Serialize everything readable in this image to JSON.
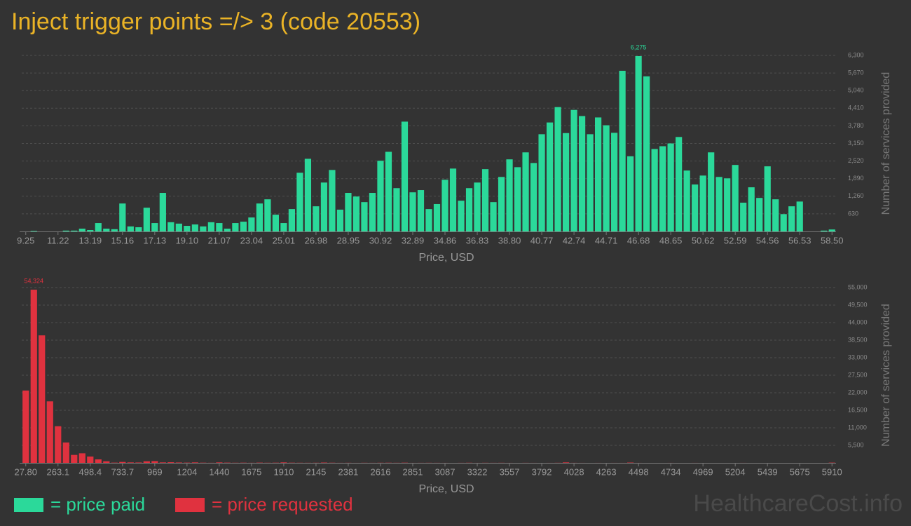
{
  "title": "Inject trigger points =/> 3 (code 20553)",
  "watermark": "HealthcareCost.info",
  "chart_data": [
    {
      "type": "bar",
      "x_label": "Price, USD",
      "y_label": "Number of services provided",
      "categories": [
        "9.25",
        null,
        null,
        null,
        "11.22",
        null,
        null,
        null,
        "13.19",
        null,
        null,
        null,
        "15.16",
        null,
        null,
        null,
        "17.13",
        null,
        null,
        null,
        "19.10",
        null,
        null,
        null,
        "21.07",
        null,
        null,
        null,
        "23.04",
        null,
        null,
        null,
        "25.01",
        null,
        null,
        null,
        "26.98",
        null,
        null,
        null,
        "28.95",
        null,
        null,
        null,
        "30.92",
        null,
        null,
        null,
        "32.89",
        null,
        null,
        null,
        "34.86",
        null,
        null,
        null,
        "36.83",
        null,
        null,
        null,
        "38.80",
        null,
        null,
        null,
        "40.77",
        null,
        null,
        null,
        "42.74",
        null,
        null,
        null,
        "44.71",
        null,
        null,
        null,
        "46.68",
        null,
        null,
        null,
        "48.65",
        null,
        null,
        null,
        "50.62",
        null,
        null,
        null,
        "52.59",
        null,
        null,
        null,
        "54.56",
        null,
        null,
        null,
        "56.53",
        null,
        null,
        null,
        "58.50"
      ],
      "series": [
        {
          "name": "= price paid",
          "color": "#2bd99a",
          "values": [
            0,
            20,
            0,
            0,
            0,
            30,
            30,
            100,
            50,
            300,
            100,
            80,
            1000,
            180,
            150,
            850,
            300,
            1380,
            330,
            280,
            200,
            250,
            180,
            330,
            300,
            100,
            300,
            350,
            500,
            1000,
            1150,
            600,
            300,
            800,
            2100,
            2600,
            900,
            1750,
            2200,
            780,
            1380,
            1250,
            1050,
            1380,
            2530,
            2850,
            1550,
            3930,
            1400,
            1480,
            800,
            980,
            1850,
            2250,
            1100,
            1550,
            1750,
            2230,
            1050,
            1950,
            2580,
            2300,
            2830,
            2450,
            3480,
            3900,
            4450,
            3520,
            4350,
            4130,
            3480,
            4080,
            3800,
            3530,
            5750,
            2690,
            6275,
            5550,
            2950,
            3050,
            3150,
            3380,
            2180,
            1680,
            2000,
            2830,
            1950,
            1900,
            2380,
            1030,
            1580,
            1200,
            2330,
            1150,
            620,
            900,
            1070,
            0,
            0,
            30,
            70
          ],
          "value_labels": [
            null,
            null,
            null,
            null,
            null,
            null,
            null,
            null,
            null,
            null,
            null,
            null,
            null,
            null,
            null,
            null,
            null,
            null,
            null,
            null,
            null,
            null,
            null,
            null,
            null,
            null,
            null,
            null,
            null,
            null,
            null,
            null,
            null,
            null,
            null,
            null,
            null,
            null,
            null,
            null,
            null,
            null,
            null,
            null,
            null,
            null,
            null,
            null,
            null,
            null,
            null,
            null,
            null,
            null,
            null,
            null,
            null,
            null,
            null,
            null,
            null,
            null,
            null,
            null,
            null,
            null,
            null,
            null,
            null,
            null,
            null,
            null,
            null,
            null,
            null,
            null,
            "6,275",
            null,
            null,
            null,
            null,
            null,
            null,
            null,
            null,
            null,
            null,
            null,
            null,
            null,
            null,
            null,
            null,
            null,
            null,
            null,
            null,
            null,
            null,
            null,
            null
          ]
        }
      ],
      "ylim": [
        0,
        6300
      ],
      "yticks": [
        630,
        {
          "value": 1260,
          "label": "1,260"
        },
        {
          "value": 1890,
          "label": "1,890"
        },
        {
          "value": 2520,
          "label": "2,520"
        },
        {
          "value": 3150,
          "label": "3,150"
        },
        {
          "value": 3780,
          "label": "3,780"
        },
        {
          "value": 4410,
          "label": "4,410"
        },
        {
          "value": 5040,
          "label": "5,040"
        },
        {
          "value": 5670,
          "label": "5,670"
        },
        {
          "value": 6300,
          "label": "6,300"
        }
      ],
      "grid": true
    },
    {
      "type": "bar",
      "x_label": "Price, USD",
      "y_label": "Number of services provided",
      "categories": [
        "27.80",
        null,
        null,
        null,
        "263.1",
        null,
        null,
        null,
        "498.4",
        null,
        null,
        null,
        "733.7",
        null,
        null,
        null,
        "969",
        null,
        null,
        null,
        "1204",
        null,
        null,
        null,
        "1440",
        null,
        null,
        null,
        "1675",
        null,
        null,
        null,
        "1910",
        null,
        null,
        null,
        "2145",
        null,
        null,
        null,
        "2381",
        null,
        null,
        null,
        "2616",
        null,
        null,
        null,
        "2851",
        null,
        null,
        null,
        "3087",
        null,
        null,
        null,
        "3322",
        null,
        null,
        null,
        "3557",
        null,
        null,
        null,
        "3792",
        null,
        null,
        null,
        "4028",
        null,
        null,
        null,
        "4263",
        null,
        null,
        null,
        "4498",
        null,
        null,
        null,
        "4734",
        null,
        null,
        null,
        "4969",
        null,
        null,
        null,
        "5204",
        null,
        null,
        null,
        "5439",
        null,
        null,
        null,
        "5675",
        null,
        null,
        null,
        "5910"
      ],
      "series": [
        {
          "name": "= price requested",
          "color": "#e0323f",
          "values": [
            22700,
            54324,
            40000,
            19300,
            11500,
            6400,
            2500,
            3000,
            2000,
            1100,
            500,
            80,
            300,
            150,
            120,
            500,
            550,
            150,
            200,
            120,
            80,
            150,
            60,
            30,
            150,
            80,
            40,
            60,
            30,
            80,
            40,
            60,
            150,
            60,
            40,
            30,
            40,
            100,
            50,
            20,
            30,
            10,
            30,
            20,
            40,
            50,
            30,
            60,
            10,
            20,
            30,
            20,
            10,
            0,
            20,
            40,
            10,
            30,
            20,
            30,
            10,
            0,
            20,
            10,
            0,
            10,
            30,
            150,
            20,
            10,
            0,
            10,
            0,
            10,
            10,
            100,
            10,
            0,
            0,
            0,
            10,
            0,
            0,
            10,
            0,
            0,
            0,
            0,
            0,
            10,
            0,
            0,
            0,
            0,
            0,
            0,
            0,
            0,
            0,
            0,
            80
          ],
          "value_labels": [
            null,
            "54,324",
            null,
            null,
            null,
            null,
            null,
            null,
            null,
            null,
            null,
            null,
            null,
            null,
            null,
            null,
            null,
            null,
            null,
            null,
            null,
            null,
            null,
            null,
            null,
            null,
            null,
            null,
            null,
            null,
            null,
            null,
            null,
            null,
            null,
            null,
            null,
            null,
            null,
            null,
            null,
            null,
            null,
            null,
            null,
            null,
            null,
            null,
            null,
            null,
            null,
            null,
            null,
            null,
            null,
            null,
            null,
            null,
            null,
            null,
            null,
            null,
            null,
            null,
            null,
            null,
            null,
            null,
            null,
            null,
            null,
            null,
            null,
            null,
            null,
            null,
            null,
            null,
            null,
            null,
            null,
            null,
            null,
            null,
            null,
            null,
            null,
            null,
            null,
            null,
            null,
            null,
            null,
            null,
            null,
            null,
            null,
            null,
            null,
            null,
            null
          ]
        }
      ],
      "ylim": [
        0,
        55000
      ],
      "yticks": [
        {
          "value": 5500,
          "label": "5,500"
        },
        {
          "value": 11000,
          "label": "11,000"
        },
        {
          "value": 16500,
          "label": "16,500"
        },
        {
          "value": 22000,
          "label": "22,000"
        },
        {
          "value": 27500,
          "label": "27,500"
        },
        {
          "value": 33000,
          "label": "33,000"
        },
        {
          "value": 38500,
          "label": "38,500"
        },
        {
          "value": 44000,
          "label": "44,000"
        },
        {
          "value": 49500,
          "label": "49,500"
        },
        {
          "value": 55000,
          "label": "55,000"
        }
      ],
      "grid": true
    }
  ]
}
